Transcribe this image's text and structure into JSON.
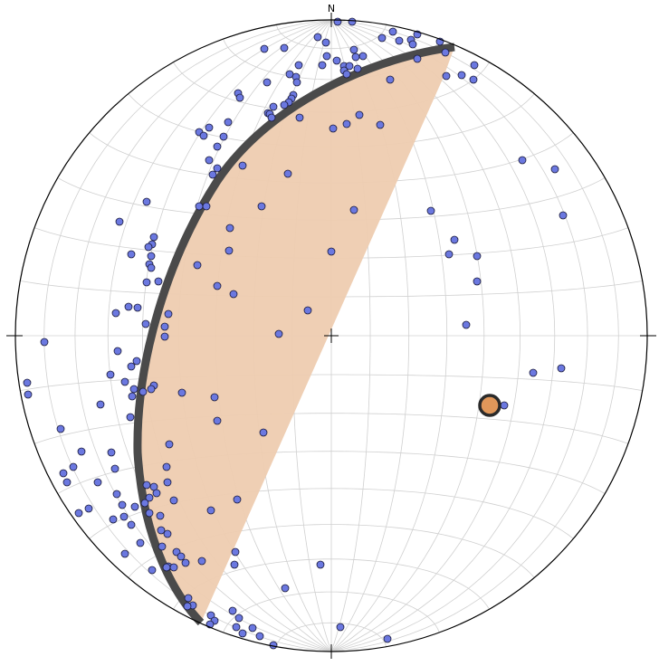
{
  "stereonet": {
    "north_label": "N",
    "colors": {
      "pole_fill": "#6b78e0",
      "pole_stroke": "#1a1a3a",
      "great_circle": "#4a4a4a",
      "zone_fill": "#eeccb0",
      "mean_pole_fill": "#e0975a",
      "mean_pole_stroke": "#2a2a2a",
      "grid": "#d0d0d0",
      "primitive": "#000000"
    }
  }
}
